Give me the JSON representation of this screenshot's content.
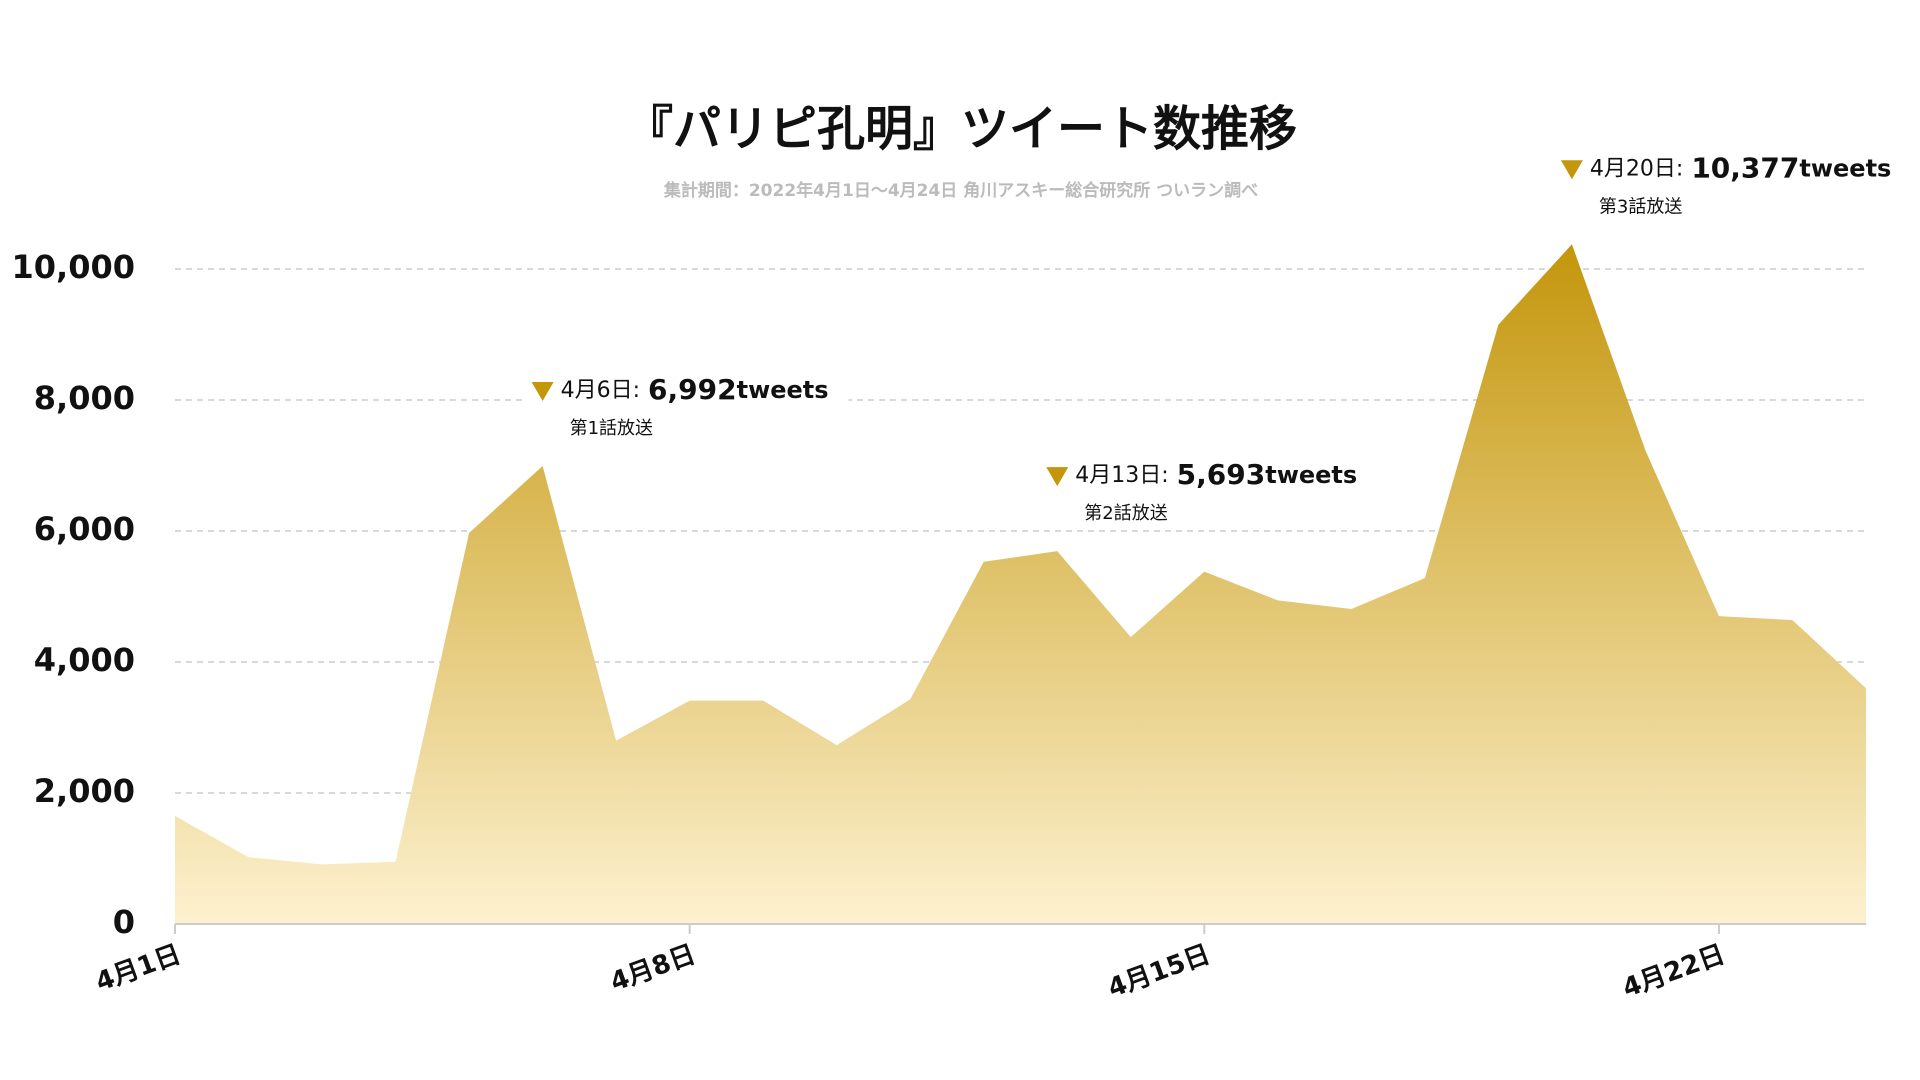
{
  "chart_data": {
    "type": "area",
    "title": "『パリピ孔明』ツイート数推移",
    "subtitle": "集計期間：2022年4月1日～4月24日 角川アスキー総合研究所 ついラン調べ",
    "categories": [
      "4月1日",
      null,
      null,
      null,
      null,
      null,
      null,
      "4月8日",
      null,
      null,
      null,
      null,
      null,
      null,
      "4月15日",
      null,
      null,
      null,
      null,
      null,
      null,
      "4月22日",
      null,
      null
    ],
    "series": [
      {
        "name": "tweets",
        "color": "#c4960c",
        "values": [
          1650,
          1020,
          910,
          950,
          5970,
          6992,
          2800,
          3410,
          3410,
          2730,
          3430,
          5530,
          5693,
          4380,
          5380,
          4940,
          4810,
          5280,
          9150,
          10377,
          7230,
          4700,
          4640,
          3600
        ]
      }
    ],
    "ylim": [
      0,
      11000
    ],
    "yticks": [
      0,
      {
        "value": 2000,
        "label": "2,000"
      },
      {
        "value": 4000,
        "label": "4,000"
      },
      {
        "value": 6000,
        "label": "6,000"
      },
      {
        "value": 8000,
        "label": "8,000"
      },
      {
        "value": 10000,
        "label": "10,000"
      }
    ],
    "grid": true,
    "annotations": [
      {
        "text": "4月6日:",
        "value": 6992,
        "label": "6,992",
        "unit": "tweets",
        "note": "第1話放送"
      },
      {
        "text": "4月13日:",
        "value": 5693,
        "label": "5,693",
        "unit": "tweets",
        "note": "第2話放送"
      },
      {
        "text": "4月20日:",
        "value": 10377,
        "label": "10,377",
        "unit": "tweets",
        "note": "第3話放送"
      }
    ]
  }
}
